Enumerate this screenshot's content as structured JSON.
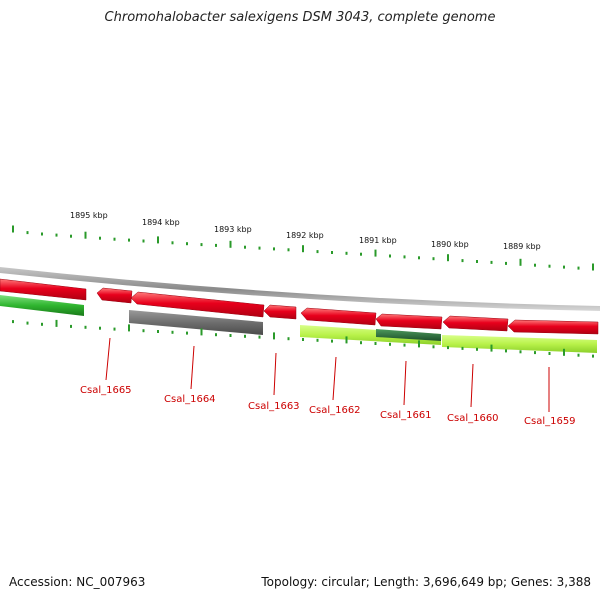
{
  "title": "Chromohalobacter salexigens DSM 3043, complete genome",
  "accession_text": "Accession: NC_007963",
  "summary_text": "Topology: circular; Length: 3,696,649 bp; Genes: 3,388",
  "scale_labels": [
    "1895 kbp",
    "1894 kbp",
    "1893 kbp",
    "1892 kbp",
    "1891 kbp",
    "1890 kbp",
    "1889 kbp"
  ],
  "locus_tags": [
    "Csal_1665",
    "Csal_1664",
    "Csal_1663",
    "Csal_1662",
    "Csal_1661",
    "Csal_1660",
    "Csal_1659"
  ],
  "colors": {
    "gene_red": "#e8001c",
    "gene_red_light": "#ff6f6f",
    "green": "#2fb52f",
    "gray": "#6e6e6e",
    "lime": "#b9f24a",
    "dark_green": "#2a6e3a",
    "tick": "#2a9a2a",
    "backbone": "#8a8a8a"
  }
}
